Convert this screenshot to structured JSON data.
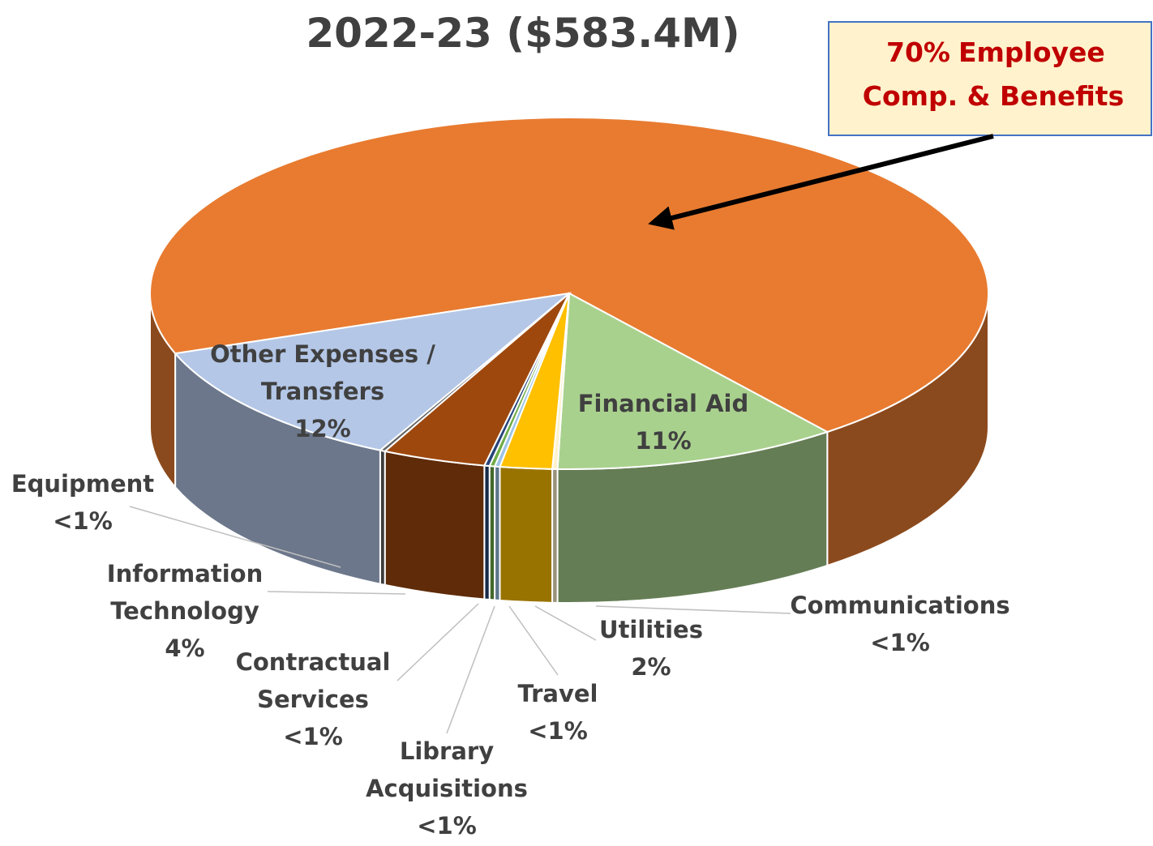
{
  "chart_data": {
    "type": "pie3d",
    "title": "2022-23 ($583.4M)",
    "categories": [
      "Employee Comp. & Benefits",
      "Financial Aid",
      "Communications",
      "Utilities",
      "Travel",
      "Library Acquisitions",
      "Contractual Services",
      "Information Technology",
      "Equipment",
      "Other Expenses / Transfers"
    ],
    "values": [
      70,
      11,
      0.2,
      2,
      0.2,
      0.2,
      0.2,
      4,
      0.2,
      12
    ],
    "value_labels": [
      "70%",
      "11%",
      "<1%",
      "2%",
      "<1%",
      "<1%",
      "<1%",
      "4%",
      "<1%",
      "12%"
    ],
    "colors": [
      "#E87B30",
      "#A9D18E",
      "#FFF2CC",
      "#FFC000",
      "#9DC3E6",
      "#70AD47",
      "#264478",
      "#9E480E",
      "#636363",
      "#B4C7E7"
    ]
  }
}
